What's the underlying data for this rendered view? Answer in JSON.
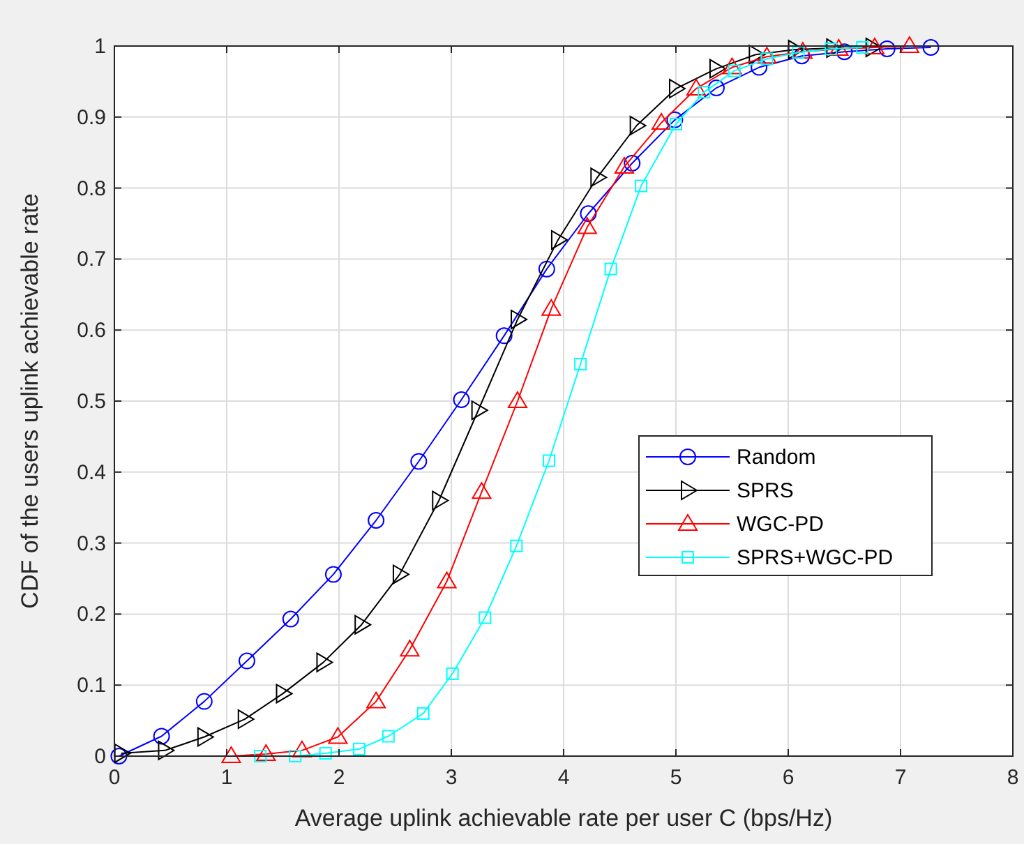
{
  "chart_data": {
    "type": "line",
    "xlabel": "Average uplink achievable rate per user C (bps/Hz)",
    "ylabel": "CDF of the users uplink achievable rate",
    "xlim": [
      0,
      8
    ],
    "xticks": [
      0,
      1,
      2,
      3,
      4,
      5,
      6,
      7,
      8
    ],
    "ylim": [
      0,
      1
    ],
    "yticks": [
      0,
      0.1,
      0.2,
      0.3,
      0.4,
      0.5,
      0.6,
      0.7,
      0.8,
      0.9,
      1
    ],
    "grid": true,
    "legend": "right",
    "series": [
      {
        "name": "Random",
        "color": "#0000ff",
        "marker": "circle",
        "x": [
          0.04,
          0.42,
          0.8,
          1.18,
          1.57,
          1.95,
          2.33,
          2.71,
          3.09,
          3.47,
          3.85,
          4.22,
          4.61,
          4.99,
          5.36,
          5.74,
          6.12,
          6.5,
          6.88,
          7.27
        ],
        "values": [
          0,
          0.028,
          0.077,
          0.134,
          0.193,
          0.256,
          0.332,
          0.415,
          0.502,
          0.592,
          0.686,
          0.764,
          0.835,
          0.896,
          0.941,
          0.97,
          0.986,
          0.992,
          0.996,
          0.998
        ]
      },
      {
        "name": "SPRS",
        "color": "#000000",
        "marker": "triangle-right",
        "x": [
          0.06,
          0.45,
          0.8,
          1.16,
          1.5,
          1.86,
          2.2,
          2.54,
          2.89,
          3.24,
          3.59,
          3.95,
          4.3,
          4.65,
          5.0,
          5.36,
          5.71,
          6.06,
          6.4,
          6.75
        ],
        "values": [
          0.004,
          0.008,
          0.027,
          0.052,
          0.088,
          0.132,
          0.185,
          0.256,
          0.36,
          0.487,
          0.615,
          0.727,
          0.815,
          0.888,
          0.94,
          0.968,
          0.988,
          0.995,
          0.997,
          0.998
        ]
      },
      {
        "name": "WGC-PD",
        "color": "#ff0000",
        "marker": "triangle",
        "x": [
          1.04,
          1.35,
          1.67,
          1.99,
          2.33,
          2.63,
          2.96,
          3.27,
          3.59,
          3.89,
          4.21,
          4.54,
          4.87,
          5.18,
          5.5,
          5.81,
          6.13,
          6.45,
          6.77,
          7.08
        ],
        "values": [
          0,
          0.003,
          0.008,
          0.027,
          0.077,
          0.15,
          0.246,
          0.372,
          0.5,
          0.63,
          0.745,
          0.83,
          0.892,
          0.94,
          0.97,
          0.985,
          0.992,
          0.996,
          0.998,
          1
        ]
      },
      {
        "name": "SPRS+WGC-PD",
        "color": "#00ffff",
        "marker": "square",
        "x": [
          1.3,
          1.61,
          1.88,
          2.18,
          2.44,
          2.75,
          3.01,
          3.3,
          3.58,
          3.87,
          4.15,
          4.42,
          4.69,
          5.0,
          5.25,
          5.52,
          5.81,
          6.09,
          6.38,
          6.66
        ],
        "values": [
          0,
          0,
          0.004,
          0.01,
          0.028,
          0.06,
          0.116,
          0.195,
          0.296,
          0.416,
          0.552,
          0.686,
          0.803,
          0.89,
          0.935,
          0.965,
          0.982,
          0.991,
          0.996,
          0.998
        ]
      }
    ]
  }
}
